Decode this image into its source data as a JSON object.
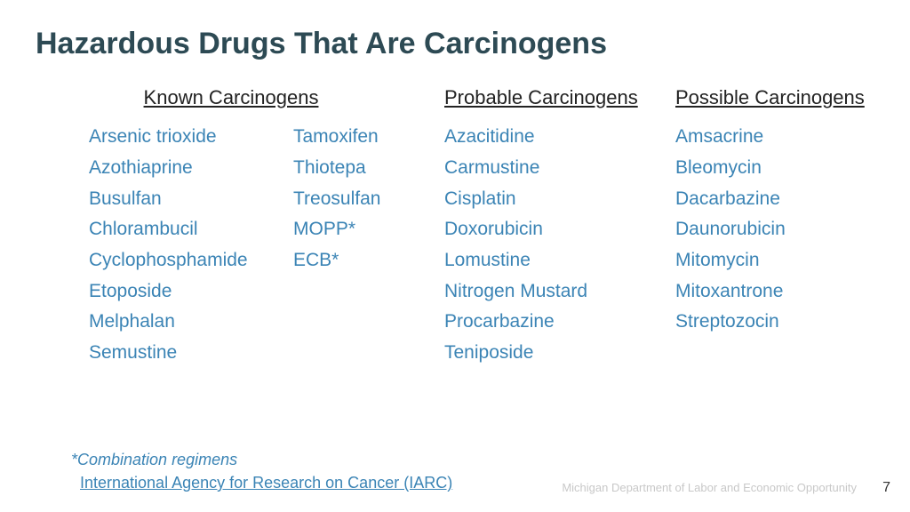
{
  "title": "Hazardous Drugs That Are Carcinogens",
  "headers": {
    "known": "Known Carcinogens",
    "probable": "Probable Carcinogens",
    "possible": "Possible Carcinogens"
  },
  "known_col1": [
    "Arsenic trioxide",
    "Azothiaprine",
    "Busulfan",
    "Chlorambucil",
    "Cyclophosphamide",
    "Etoposide",
    "Melphalan",
    "Semustine"
  ],
  "known_col2": [
    "Tamoxifen",
    "Thiotepa",
    "Treosulfan",
    "MOPP*",
    "ECB*"
  ],
  "probable": [
    "Azacitidine",
    "Carmustine",
    "Cisplatin",
    "Doxorubicin",
    "Lomustine",
    "Nitrogen Mustard",
    "Procarbazine",
    "Teniposide"
  ],
  "possible": [
    "Amsacrine",
    "Bleomycin",
    "Dacarbazine",
    "Daunorubicin",
    "Mitomycin",
    "Mitoxantrone",
    "Streptozocin"
  ],
  "footnote": "*Combination regimens",
  "link": "International Agency for Research on Cancer (IARC)",
  "dept": "Michigan Department of Labor and Economic Opportunity",
  "page": "7",
  "colors": {
    "title": "#2d4a54",
    "item": "#3b84b5",
    "header": "#222222",
    "dept": "#c8c8c8",
    "bg": "#ffffff"
  },
  "fonts": {
    "title_size": 34,
    "header_size": 22,
    "item_size": 21,
    "footnote_size": 18
  }
}
